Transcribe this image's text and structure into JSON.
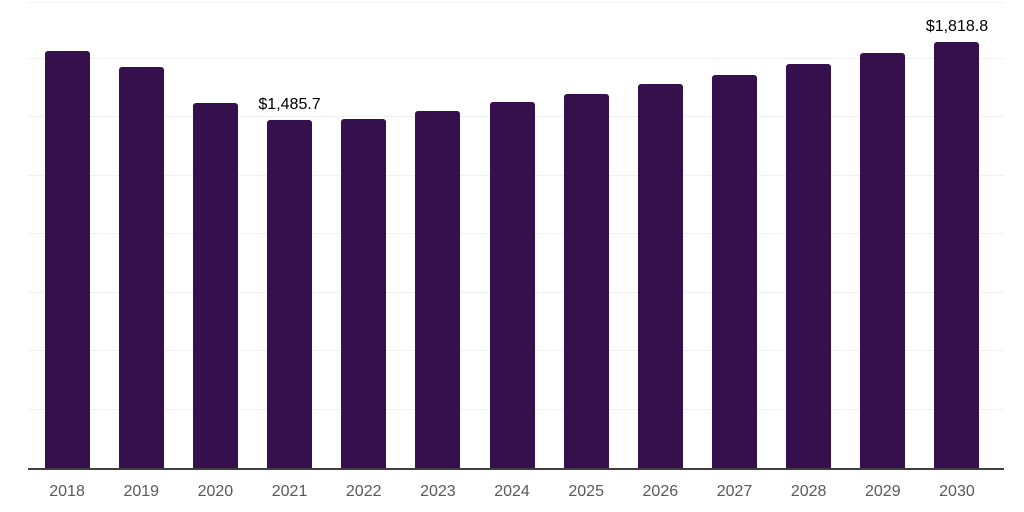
{
  "chart_data": {
    "type": "bar",
    "title": "",
    "xlabel": "",
    "ylabel": "",
    "categories": [
      "2018",
      "2019",
      "2020",
      "2021",
      "2022",
      "2023",
      "2024",
      "2025",
      "2026",
      "2027",
      "2028",
      "2029",
      "2030"
    ],
    "values": [
      1783.2,
      1712.9,
      1559.0,
      1485.7,
      1491.8,
      1526.1,
      1564.0,
      1599.4,
      1639.5,
      1680.0,
      1726.6,
      1773.4,
      1818.8
    ],
    "annotations": [
      {
        "category": "2021",
        "label": "$1,485.7"
      },
      {
        "category": "2030",
        "label": "$1,818.8"
      }
    ],
    "ylim": [
      0,
      2000
    ],
    "gridline_step": 250,
    "grid": true,
    "legend_position": "none",
    "y_tick_labels_visible": false,
    "colors": {
      "bar": "#36104D",
      "gridline": "#F1F1F1",
      "axis_line": "#3F3F3F",
      "tick_label": "#58595B",
      "annotation": "#000000",
      "background": "#FFFFFF"
    }
  }
}
